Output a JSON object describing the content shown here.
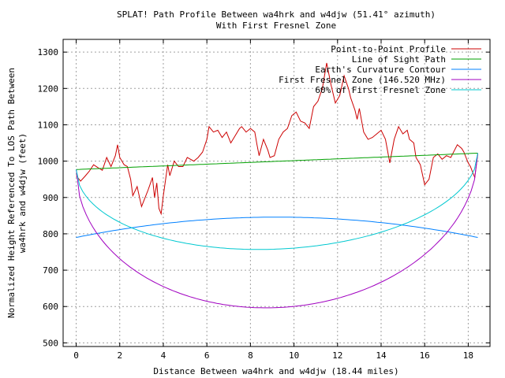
{
  "chart_data": {
    "type": "line",
    "title": "SPLAT! Path Profile Between wa4hrk and w4djw (51.41° azimuth)",
    "subtitle": "With First Fresnel Zone",
    "xlabel": "Distance Between wa4hrk and w4djw (18.44 miles)",
    "ylabel": "Normalized Height Referenced To LOS Path Between wa4hrk and w4djw (feet)",
    "ylabel_lines": [
      "Normalized Height Referenced To LOS Path Between",
      "wa4hrk and w4djw (feet)"
    ],
    "xlim": [
      -0.6,
      19.0
    ],
    "ylim": [
      490,
      1335
    ],
    "xticks": [
      0,
      2,
      4,
      6,
      8,
      10,
      12,
      14,
      16,
      18
    ],
    "yticks": [
      500,
      600,
      700,
      800,
      900,
      1000,
      1100,
      1200,
      1300
    ],
    "grid": true,
    "legend_position": "top-right",
    "path_length": 18.44,
    "series": [
      {
        "name": "Point-to-Point Profile",
        "color": "#cc0000",
        "points": [
          [
            0,
            960
          ],
          [
            0.2,
            945
          ],
          [
            0.4,
            958
          ],
          [
            0.6,
            972
          ],
          [
            0.8,
            990
          ],
          [
            1.0,
            982
          ],
          [
            1.2,
            975
          ],
          [
            1.4,
            1010
          ],
          [
            1.6,
            985
          ],
          [
            1.8,
            1015
          ],
          [
            1.9,
            1045
          ],
          [
            2.0,
            1010
          ],
          [
            2.2,
            990
          ],
          [
            2.35,
            985
          ],
          [
            2.5,
            950
          ],
          [
            2.6,
            905
          ],
          [
            2.8,
            930
          ],
          [
            3.0,
            875
          ],
          [
            3.1,
            890
          ],
          [
            3.3,
            920
          ],
          [
            3.5,
            955
          ],
          [
            3.6,
            900
          ],
          [
            3.7,
            940
          ],
          [
            3.8,
            870
          ],
          [
            3.9,
            855
          ],
          [
            4.0,
            905
          ],
          [
            4.2,
            990
          ],
          [
            4.3,
            960
          ],
          [
            4.5,
            1000
          ],
          [
            4.7,
            985
          ],
          [
            4.9,
            985
          ],
          [
            5.1,
            1010
          ],
          [
            5.4,
            1000
          ],
          [
            5.6,
            1010
          ],
          [
            5.8,
            1025
          ],
          [
            6.0,
            1060
          ],
          [
            6.1,
            1095
          ],
          [
            6.3,
            1080
          ],
          [
            6.5,
            1085
          ],
          [
            6.7,
            1065
          ],
          [
            6.9,
            1080
          ],
          [
            7.1,
            1050
          ],
          [
            7.3,
            1070
          ],
          [
            7.5,
            1090
          ],
          [
            7.6,
            1095
          ],
          [
            7.8,
            1080
          ],
          [
            8.0,
            1090
          ],
          [
            8.2,
            1080
          ],
          [
            8.3,
            1045
          ],
          [
            8.4,
            1015
          ],
          [
            8.6,
            1060
          ],
          [
            8.8,
            1030
          ],
          [
            8.9,
            1010
          ],
          [
            9.1,
            1015
          ],
          [
            9.3,
            1060
          ],
          [
            9.5,
            1080
          ],
          [
            9.7,
            1090
          ],
          [
            9.9,
            1125
          ],
          [
            10.1,
            1135
          ],
          [
            10.3,
            1110
          ],
          [
            10.5,
            1105
          ],
          [
            10.7,
            1090
          ],
          [
            10.9,
            1150
          ],
          [
            11.1,
            1165
          ],
          [
            11.3,
            1200
          ],
          [
            11.5,
            1270
          ],
          [
            11.7,
            1210
          ],
          [
            11.9,
            1160
          ],
          [
            12.1,
            1180
          ],
          [
            12.3,
            1235
          ],
          [
            12.5,
            1200
          ],
          [
            12.6,
            1175
          ],
          [
            12.8,
            1140
          ],
          [
            12.9,
            1115
          ],
          [
            13.0,
            1145
          ],
          [
            13.2,
            1080
          ],
          [
            13.4,
            1060
          ],
          [
            13.6,
            1065
          ],
          [
            13.8,
            1075
          ],
          [
            14.0,
            1085
          ],
          [
            14.2,
            1060
          ],
          [
            14.4,
            995
          ],
          [
            14.6,
            1060
          ],
          [
            14.8,
            1095
          ],
          [
            15.0,
            1075
          ],
          [
            15.2,
            1085
          ],
          [
            15.3,
            1060
          ],
          [
            15.5,
            1050
          ],
          [
            15.6,
            1010
          ],
          [
            15.8,
            990
          ],
          [
            16.0,
            935
          ],
          [
            16.2,
            950
          ],
          [
            16.4,
            1010
          ],
          [
            16.6,
            1020
          ],
          [
            16.8,
            1005
          ],
          [
            17.0,
            1015
          ],
          [
            17.2,
            1010
          ],
          [
            17.5,
            1045
          ],
          [
            17.7,
            1035
          ],
          [
            17.8,
            1025
          ],
          [
            17.9,
            1010
          ],
          [
            18.0,
            995
          ],
          [
            18.1,
            985
          ],
          [
            18.2,
            970
          ],
          [
            18.3,
            955
          ],
          [
            18.44,
            1020
          ]
        ]
      },
      {
        "name": "Line of Sight Path",
        "color": "#00a000",
        "curve": "los",
        "start": 977,
        "end": 1022
      },
      {
        "name": "Earth's Curvature Contour",
        "color": "#0080ff",
        "curve": "earth",
        "ends": 790,
        "mid": 846
      },
      {
        "name": "First Fresnel Zone (146.520 MHz)",
        "color": "#a000c0",
        "curve": "fresnel",
        "ends": 977,
        "end2": 1022,
        "mid": 597
      },
      {
        "name": "60% of First Fresnel Zone",
        "color": "#00c8d0",
        "curve": "fresnel",
        "ends": 977,
        "end2": 1022,
        "mid": 758
      }
    ]
  }
}
